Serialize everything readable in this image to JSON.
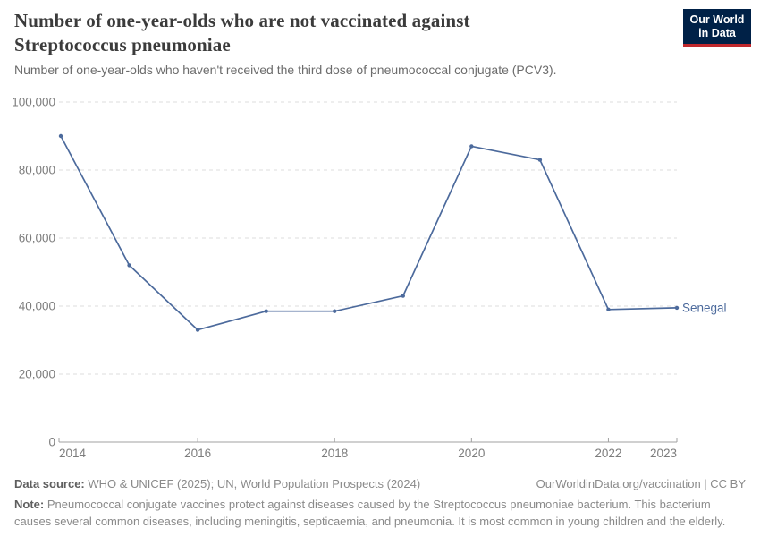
{
  "header": {
    "title": "Number of one-year-olds who are not vaccinated against Streptococcus pneumoniae",
    "subtitle": "Number of one-year-olds who haven't received the third dose of pneumococcal conjugate (PCV3)."
  },
  "logo": {
    "line1": "Our World",
    "line2": "in Data"
  },
  "chart_data": {
    "type": "line",
    "title": "Number of one-year-olds who are not vaccinated against Streptococcus pneumoniae",
    "x": [
      2014,
      2015,
      2016,
      2017,
      2018,
      2019,
      2020,
      2021,
      2022,
      2023
    ],
    "series": [
      {
        "name": "Senegal",
        "color": "#4C6A9C",
        "values": [
          90000,
          52000,
          33000,
          38500,
          38500,
          43000,
          87000,
          83000,
          39000,
          39500
        ]
      }
    ],
    "xlabel": "",
    "ylabel": "",
    "xlim": [
      2014,
      2023
    ],
    "ylim": [
      0,
      100000
    ],
    "yticks": [
      0,
      20000,
      40000,
      60000,
      80000,
      100000
    ],
    "ytick_labels": [
      "0",
      "20,000",
      "40,000",
      "60,000",
      "80,000",
      "100,000"
    ],
    "xticks": [
      2014,
      2016,
      2018,
      2020,
      2022,
      2023
    ],
    "xtick_labels": [
      "2014",
      "2016",
      "2018",
      "2020",
      "2022",
      "2023"
    ],
    "grid": "horizontal-dashed",
    "legend": "end-of-line-label"
  },
  "footer": {
    "datasource_label": "Data source:",
    "datasource_text": " WHO & UNICEF (2025); UN, World Population Prospects (2024)",
    "link_text": "OurWorldinData.org/vaccination | CC BY",
    "note_label": "Note:",
    "note_text": " Pneumococcal conjugate vaccines protect against diseases caused by the Streptococcus pneumoniae bacterium. This bacterium causes several common diseases, including meningitis, septicaemia, and pneumonia. It is most common in young children and the elderly."
  },
  "colors": {
    "accent_line": "#4C6A9C",
    "logo_bg": "#002147",
    "logo_stripe": "#c0282d",
    "grid": "#dcdcdc",
    "axis": "#a1a1a1",
    "tick_text": "#7d7d7d",
    "title_text": "#3b3b3b",
    "subtitle_text": "#6c6c6c",
    "footer_text": "#8a8a8a"
  }
}
